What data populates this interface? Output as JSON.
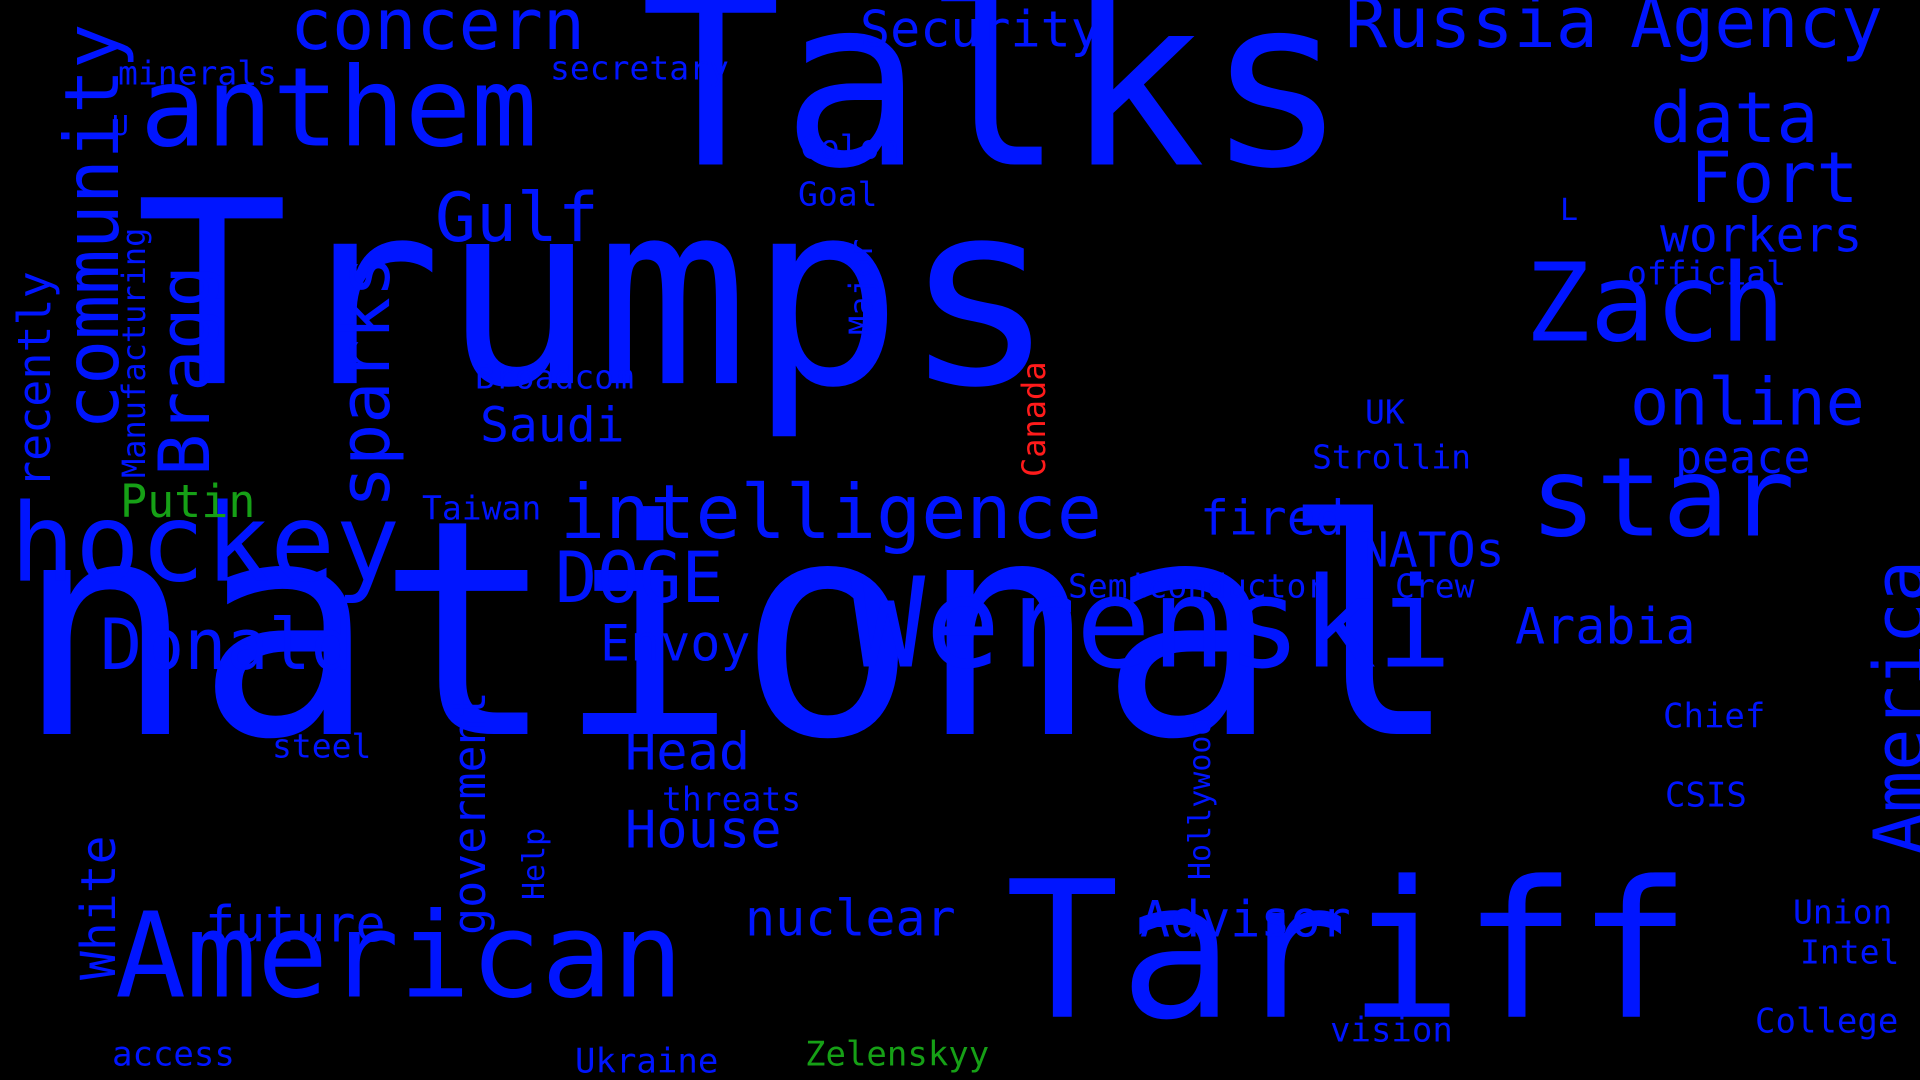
{
  "palette": {
    "background": "#000000",
    "primary": "#0015ff",
    "green": "#16a016",
    "red": "#ff1b1b"
  },
  "words": [
    {
      "text": "national",
      "color": "primary"
    },
    {
      "text": "Trumps",
      "color": "primary"
    },
    {
      "text": "Talks",
      "color": "primary"
    },
    {
      "text": "Tariff",
      "color": "primary"
    },
    {
      "text": "star",
      "color": "primary"
    },
    {
      "text": "Werenski",
      "color": "primary"
    },
    {
      "text": "American",
      "color": "primary"
    },
    {
      "text": "hockey",
      "color": "primary"
    },
    {
      "text": "anthem",
      "color": "primary"
    },
    {
      "text": "Zach",
      "color": "primary"
    },
    {
      "text": "intelligence",
      "color": "primary"
    },
    {
      "text": "concern",
      "color": "primary"
    },
    {
      "text": "Russia",
      "color": "primary"
    },
    {
      "text": "Agency",
      "color": "primary"
    },
    {
      "text": "data",
      "color": "primary"
    },
    {
      "text": "Fort",
      "color": "primary"
    },
    {
      "text": "online",
      "color": "primary"
    },
    {
      "text": "DOGE",
      "color": "primary"
    },
    {
      "text": "Donald",
      "color": "primary"
    },
    {
      "text": "Gulf",
      "color": "primary"
    },
    {
      "text": "community",
      "color": "primary"
    },
    {
      "text": "Bragg",
      "color": "primary"
    },
    {
      "text": "sparks",
      "color": "primary"
    },
    {
      "text": "America",
      "color": "primary"
    },
    {
      "text": "Security",
      "color": "primary"
    },
    {
      "text": "workers",
      "color": "primary"
    },
    {
      "text": "Saudi",
      "color": "primary"
    },
    {
      "text": "Envoy",
      "color": "primary"
    },
    {
      "text": "Head",
      "color": "primary"
    },
    {
      "text": "House",
      "color": "primary"
    },
    {
      "text": "nuclear",
      "color": "primary"
    },
    {
      "text": "Advisor",
      "color": "primary"
    },
    {
      "text": "future",
      "color": "primary"
    },
    {
      "text": "Arabia",
      "color": "primary"
    },
    {
      "text": "fired",
      "color": "primary"
    },
    {
      "text": "NATOs",
      "color": "primary"
    },
    {
      "text": "peace",
      "color": "primary"
    },
    {
      "text": "Putin",
      "color": "green"
    },
    {
      "text": "White",
      "color": "primary"
    },
    {
      "text": "goverment",
      "color": "primary"
    },
    {
      "text": "recently",
      "color": "primary"
    },
    {
      "text": "Manufacturing",
      "color": "primary"
    },
    {
      "text": "minerals",
      "color": "primary"
    },
    {
      "text": "secretary",
      "color": "primary"
    },
    {
      "text": "U",
      "color": "primary"
    },
    {
      "text": "Colon",
      "color": "primary"
    },
    {
      "text": "Goal",
      "color": "primary"
    },
    {
      "text": "Major",
      "color": "primary"
    },
    {
      "text": "L",
      "color": "primary"
    },
    {
      "text": "official",
      "color": "primary"
    },
    {
      "text": "Broadcom",
      "color": "primary"
    },
    {
      "text": "Canada",
      "color": "red"
    },
    {
      "text": "UK",
      "color": "primary"
    },
    {
      "text": "Strollin",
      "color": "primary"
    },
    {
      "text": "Taiwan",
      "color": "primary"
    },
    {
      "text": "Semiconductor",
      "color": "primary"
    },
    {
      "text": "Crew",
      "color": "primary"
    },
    {
      "text": "Chief",
      "color": "primary"
    },
    {
      "text": "CSIS",
      "color": "primary"
    },
    {
      "text": "steel",
      "color": "primary"
    },
    {
      "text": "threats",
      "color": "primary"
    },
    {
      "text": "Hollywood",
      "color": "primary"
    },
    {
      "text": "Help",
      "color": "primary"
    },
    {
      "text": "Union",
      "color": "primary"
    },
    {
      "text": "Intel",
      "color": "primary"
    },
    {
      "text": "College",
      "color": "primary"
    },
    {
      "text": "vision",
      "color": "primary"
    },
    {
      "text": "access",
      "color": "primary"
    },
    {
      "text": "Ukraine",
      "color": "primary"
    },
    {
      "text": "Zelenskyy",
      "color": "green"
    }
  ]
}
